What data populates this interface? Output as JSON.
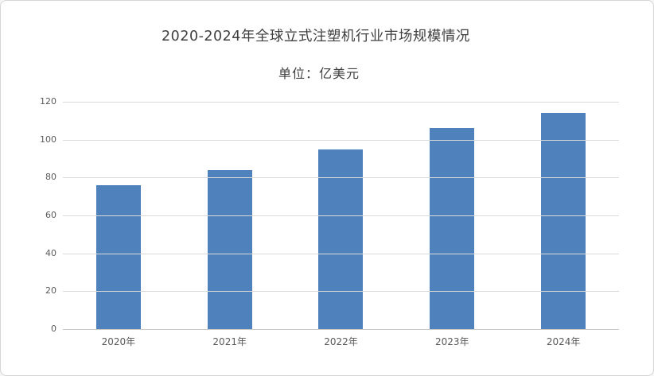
{
  "chart": {
    "title": "2020-2024年全球立式注塑机行业市场规模情况",
    "subtitle": "单位：亿美元"
  },
  "chart_data": {
    "type": "bar",
    "title": "2020-2024年全球立式注塑机行业市场规模情况",
    "subtitle": "单位：亿美元",
    "unit": "亿美元",
    "categories": [
      "2020年",
      "2021年",
      "2022年",
      "2023年",
      "2024年"
    ],
    "values": [
      76,
      84,
      95,
      106,
      114
    ],
    "xlabel": "",
    "ylabel": "",
    "ylim": [
      0,
      120
    ],
    "yticks": [
      0,
      20,
      40,
      60,
      80,
      100,
      120
    ],
    "grid": true,
    "legend": false,
    "legend_position": "none"
  },
  "colors": {
    "bar": "#4f81bd",
    "gridline": "#d9d9d9",
    "axis_line": "#c9c9c9",
    "title_text": "#3f3f3f",
    "tick_text": "#595959",
    "frame_border": "#d5d5d5",
    "background": "#ffffff"
  }
}
